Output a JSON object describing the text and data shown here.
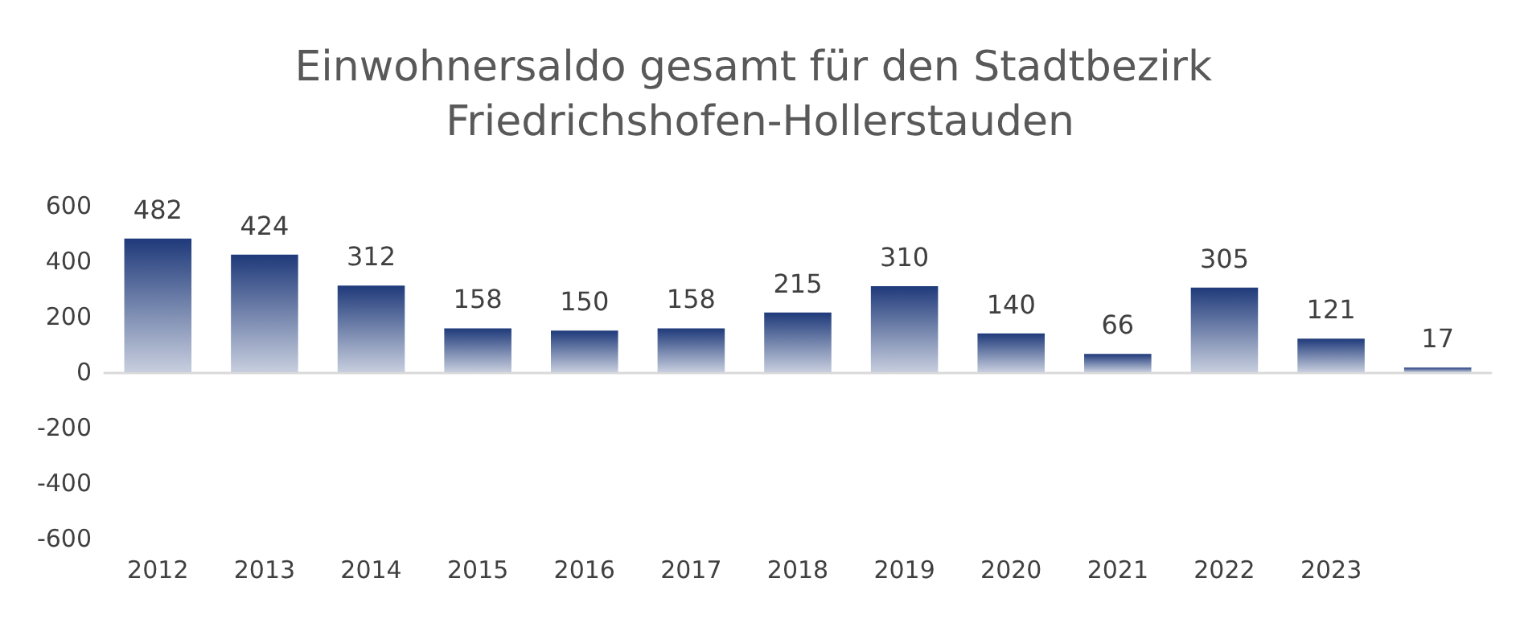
{
  "chart_data": {
    "type": "bar",
    "title": "Einwohnersaldo gesamt für den Stadtbezirk Friedrichshofen-Hollerstauden",
    "categories": [
      "2012",
      "2013",
      "2014",
      "2015",
      "2016",
      "2017",
      "2018",
      "2019",
      "2020",
      "2021",
      "2022",
      "2023",
      null
    ],
    "values": [
      482,
      424,
      312,
      158,
      150,
      158,
      215,
      310,
      140,
      66,
      305,
      121,
      17
    ],
    "color": "#1f3a7a",
    "ylim": [
      -600,
      600
    ],
    "yticks": [
      -600,
      -400,
      -200,
      0,
      200,
      400,
      600
    ],
    "data_labels": true
  }
}
